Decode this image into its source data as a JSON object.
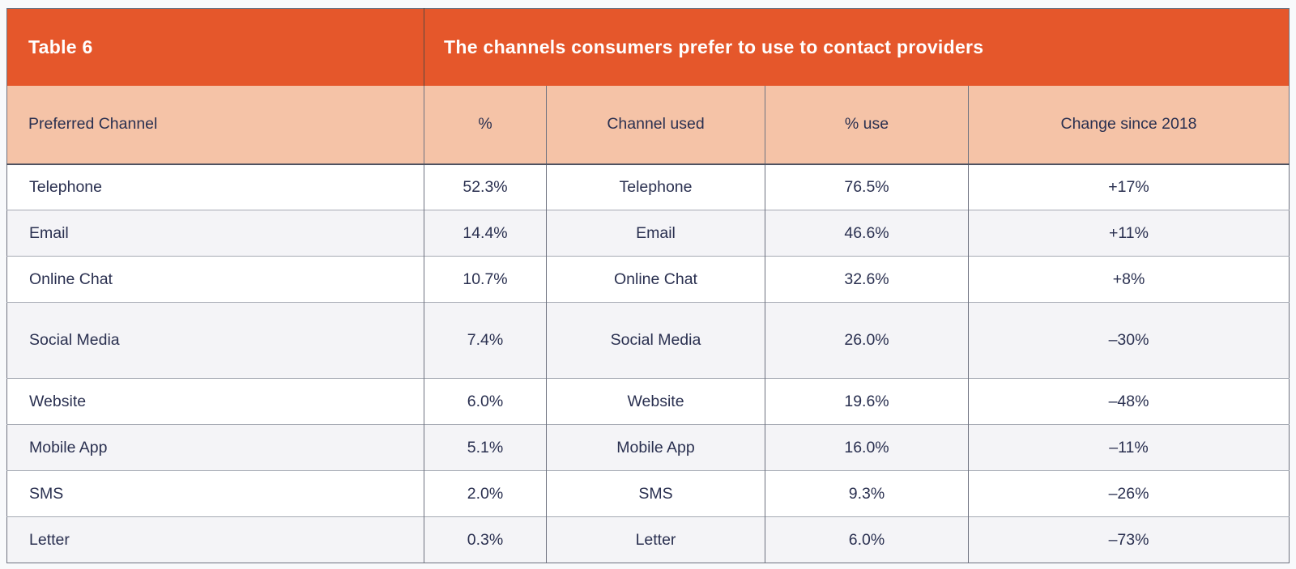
{
  "header": {
    "label": "Table 6",
    "title": "The channels consumers prefer to use to contact providers"
  },
  "chart_data": {
    "type": "table",
    "title": "The channels consumers prefer to use to contact providers",
    "columns": [
      "Preferred Channel",
      "%",
      "Channel used",
      "% use",
      "Change since 2018"
    ],
    "rows": [
      [
        "Telephone",
        "52.3%",
        "Telephone",
        "76.5%",
        "+17%"
      ],
      [
        "Email",
        "14.4%",
        "Email",
        "46.6%",
        "+11%"
      ],
      [
        "Online Chat",
        "10.7%",
        "Online Chat",
        "32.6%",
        "+8%"
      ],
      [
        "Social Media",
        "7.4%",
        "Social Media",
        "26.0%",
        "–30%"
      ],
      [
        "Website",
        "6.0%",
        "Website",
        "19.6%",
        "–48%"
      ],
      [
        "Mobile App",
        "5.1%",
        "Mobile App",
        "16.0%",
        "–11%"
      ],
      [
        "SMS",
        "2.0%",
        "SMS",
        "9.3%",
        "–26%"
      ],
      [
        "Letter",
        "0.3%",
        "Letter",
        "6.0%",
        "–73%"
      ]
    ]
  },
  "colors": {
    "header_orange": "#E5572B",
    "header_salmon": "#F5C3A7",
    "row_alternate": "#F4F4F7",
    "body_text": "#2A3050",
    "header_text": "#FFFFFF",
    "vertical_border": "#6E7280",
    "horizontal_border": "#A6AAB4"
  }
}
